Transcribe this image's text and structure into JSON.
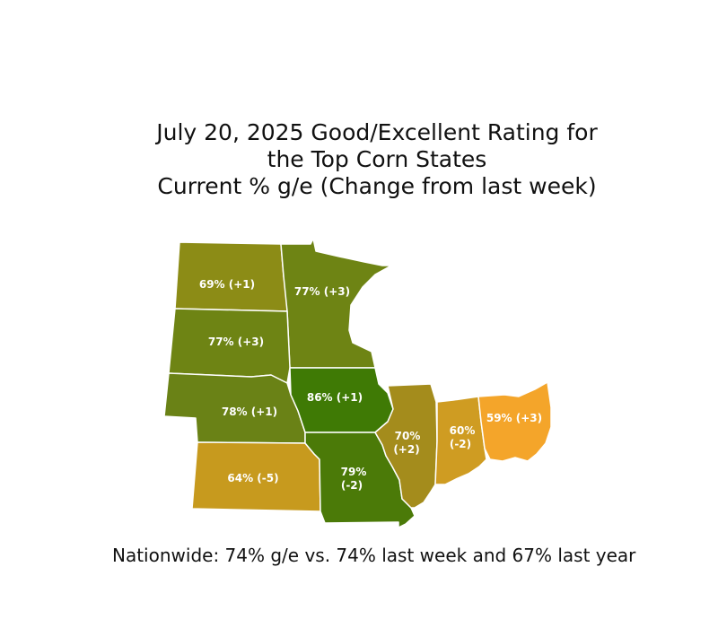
{
  "title": {
    "line1": "July 20, 2025 Good/Excellent Rating for",
    "line2": "the Top Corn States",
    "line3": "Current % g/e (Change from last week)"
  },
  "states": {
    "north_dakota": {
      "label": "69% (+1)",
      "color": "#8c8c16"
    },
    "minnesota": {
      "label": "77% (+3)",
      "color": "#6e8414"
    },
    "south_dakota": {
      "label": "77% (+3)",
      "color": "#6e8414"
    },
    "nebraska": {
      "label": "78% (+1)",
      "color": "#6a8216"
    },
    "iowa": {
      "label": "86% (+1)",
      "color": "#3f7a05"
    },
    "kansas": {
      "label": "64% (-5)",
      "color": "#c79a1e"
    },
    "missouri": {
      "line1": "79%",
      "line2": "(-2)",
      "color": "#4b7a08"
    },
    "illinois": {
      "line1": "70%",
      "line2": "(+2)",
      "color": "#a48c1c"
    },
    "indiana": {
      "line1": "60%",
      "line2": "(-2)",
      "color": "#cf9c22"
    },
    "ohio": {
      "label": "59% (+3)",
      "color": "#f4a52a"
    }
  },
  "footer": "Nationwide:  74% g/e vs. 74% last week and 67% last year"
}
